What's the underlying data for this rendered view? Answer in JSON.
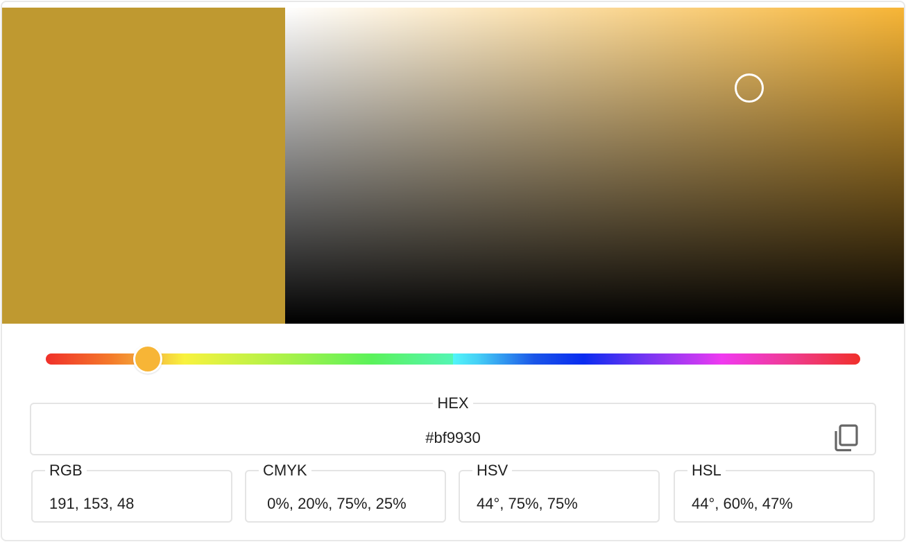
{
  "color": {
    "preview_hex": "#bf9930",
    "hue_hex": "#f7b536",
    "saturation": 0.75,
    "value": 0.75,
    "hue_degrees": 44
  },
  "hex": {
    "label": "HEX",
    "value": "#bf9930",
    "copy_icon": "copy-icon"
  },
  "formats": [
    {
      "label": "RGB",
      "value": "191, 153, 48"
    },
    {
      "label": "CMYK",
      "value": " 0%, 20%, 75%, 25%"
    },
    {
      "label": "HSV",
      "value": "44°, 75%, 75%"
    },
    {
      "label": "HSL",
      "value": "44°, 60%, 47%"
    }
  ]
}
